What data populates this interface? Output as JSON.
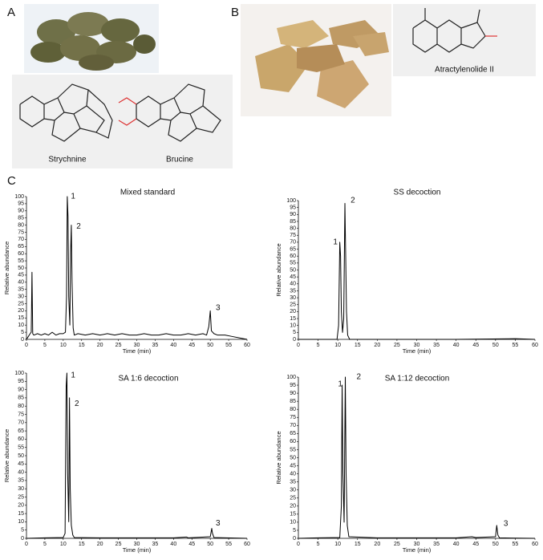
{
  "figure": {
    "panel_labels": [
      "A",
      "B",
      "C"
    ],
    "compounds": [
      "Strychnine",
      "Brucine",
      "Atractylenolide II"
    ]
  },
  "chart_data": [
    {
      "type": "line",
      "title": "Mixed standard",
      "xlabel": "Time (min)",
      "ylabel": "Relative abundance",
      "x": [
        0,
        0.5,
        1,
        1.3,
        1.5,
        1.7,
        2,
        3,
        4,
        5,
        6,
        7,
        8,
        9,
        10,
        10.6,
        10.9,
        11.1,
        11.3,
        11.5,
        11.8,
        12.0,
        12.2,
        12.4,
        12.7,
        13,
        14,
        16,
        18,
        20,
        22,
        24,
        26,
        28,
        30,
        32,
        34,
        36,
        38,
        40,
        42,
        44,
        46,
        48,
        49,
        49.6,
        50,
        50.3,
        51,
        52,
        54,
        56,
        58,
        60
      ],
      "series": [
        {
          "color": "#000000",
          "values": [
            0,
            2,
            4,
            5,
            47,
            4,
            3,
            4,
            3,
            4,
            3,
            5,
            3,
            4,
            4,
            5,
            30,
            100,
            86,
            30,
            10,
            60,
            80,
            40,
            8,
            3,
            4,
            3,
            4,
            3,
            4,
            3,
            4,
            3,
            3,
            4,
            3,
            3,
            4,
            3,
            3,
            4,
            3,
            4,
            3,
            9,
            20,
            6,
            4,
            3,
            3,
            2,
            1,
            0
          ]
        }
      ],
      "annotations": [
        {
          "text": "1",
          "x": 12.7,
          "y": 100
        },
        {
          "text": "2",
          "x": 14.2,
          "y": 79
        },
        {
          "text": "3",
          "x": 52.1,
          "y": 22
        }
      ],
      "xlim": [
        0,
        60
      ],
      "xticks": [
        0,
        5,
        10,
        15,
        20,
        25,
        30,
        35,
        40,
        45,
        50,
        55,
        60
      ],
      "ylim": [
        0,
        100
      ],
      "yticks": [
        0,
        5,
        10,
        15,
        20,
        25,
        30,
        35,
        40,
        45,
        50,
        55,
        60,
        65,
        70,
        75,
        80,
        85,
        90,
        95,
        100
      ]
    },
    {
      "type": "line",
      "title": "SS decoction",
      "xlabel": "Time (min)",
      "ylabel": "Relative abundance",
      "x": [
        0,
        5,
        9.8,
        10.2,
        10.5,
        10.7,
        10.9,
        11.2,
        11.5,
        11.8,
        12.0,
        12.2,
        12.5,
        13,
        20,
        40,
        55,
        60
      ],
      "series": [
        {
          "color": "#000000",
          "values": [
            0,
            0,
            0,
            10,
            70,
            60,
            20,
            5,
            15,
            98,
            60,
            20,
            3,
            0,
            0,
            0,
            0.5,
            0
          ]
        }
      ],
      "annotations": [
        {
          "text": "1",
          "x": 9.4,
          "y": 70
        },
        {
          "text": "2",
          "x": 13.8,
          "y": 100
        }
      ],
      "xlim": [
        0,
        60
      ],
      "xticks": [
        0,
        5,
        10,
        15,
        20,
        25,
        30,
        35,
        40,
        45,
        50,
        55,
        60
      ],
      "ylim": [
        0,
        100
      ],
      "yticks": [
        0,
        5,
        10,
        15,
        20,
        25,
        30,
        35,
        40,
        45,
        50,
        55,
        60,
        65,
        70,
        75,
        80,
        85,
        90,
        95,
        100
      ]
    },
    {
      "type": "line",
      "title": "SA 1:6 decoction",
      "xlabel": "Time (min)",
      "ylabel": "Relative abundance",
      "x": [
        0,
        5,
        10,
        10.5,
        10.8,
        11.0,
        11.2,
        11.5,
        11.7,
        11.9,
        12.2,
        12.6,
        13,
        20,
        30,
        40,
        43.5,
        44,
        50,
        50.4,
        50.6,
        51,
        60
      ],
      "series": [
        {
          "color": "#000000",
          "values": [
            0,
            0.3,
            0.5,
            3,
            92,
            100,
            40,
            10,
            85,
            30,
            8,
            2,
            0.5,
            0.3,
            0.3,
            0.3,
            0.8,
            0.3,
            1,
            6,
            3,
            0.5,
            0
          ]
        }
      ],
      "annotations": [
        {
          "text": "1",
          "x": 12.7,
          "y": 98.5
        },
        {
          "text": "2",
          "x": 13.7,
          "y": 81.5
        },
        {
          "text": "3",
          "x": 52.1,
          "y": 9
        }
      ],
      "xlim": [
        0,
        60
      ],
      "xticks": [
        0,
        5,
        10,
        15,
        20,
        25,
        30,
        35,
        40,
        45,
        50,
        55,
        60
      ],
      "ylim": [
        0,
        100
      ],
      "yticks": [
        0,
        5,
        10,
        15,
        20,
        25,
        30,
        35,
        40,
        45,
        50,
        55,
        60,
        65,
        70,
        75,
        80,
        85,
        90,
        95,
        100
      ]
    },
    {
      "type": "line",
      "title": "SA 1:12 decoction",
      "xlabel": "Time (min)",
      "ylabel": "Relative abundance",
      "x": [
        0,
        5,
        10.5,
        10.9,
        11.1,
        11.3,
        11.6,
        11.9,
        12.1,
        12.4,
        12.8,
        20,
        40,
        44,
        45,
        50,
        50.3,
        50.6,
        51,
        60
      ],
      "series": [
        {
          "color": "#000000",
          "values": [
            0,
            0.3,
            0.5,
            20,
            95,
            40,
            10,
            100,
            40,
            8,
            1,
            0.3,
            0.3,
            1,
            0.5,
            1,
            8,
            2,
            0.3,
            0
          ]
        }
      ],
      "annotations": [
        {
          "text": "1",
          "x": 10.6,
          "y": 95.5
        },
        {
          "text": "2",
          "x": 15.3,
          "y": 100
        },
        {
          "text": "3",
          "x": 52.6,
          "y": 9
        }
      ],
      "xlim": [
        0,
        60
      ],
      "xticks": [
        0,
        5,
        10,
        15,
        20,
        25,
        30,
        35,
        40,
        45,
        50,
        55,
        60
      ],
      "ylim": [
        0,
        100
      ],
      "yticks": [
        0,
        5,
        10,
        15,
        20,
        25,
        30,
        35,
        40,
        45,
        50,
        55,
        60,
        65,
        70,
        75,
        80,
        85,
        90,
        95,
        100
      ]
    }
  ]
}
